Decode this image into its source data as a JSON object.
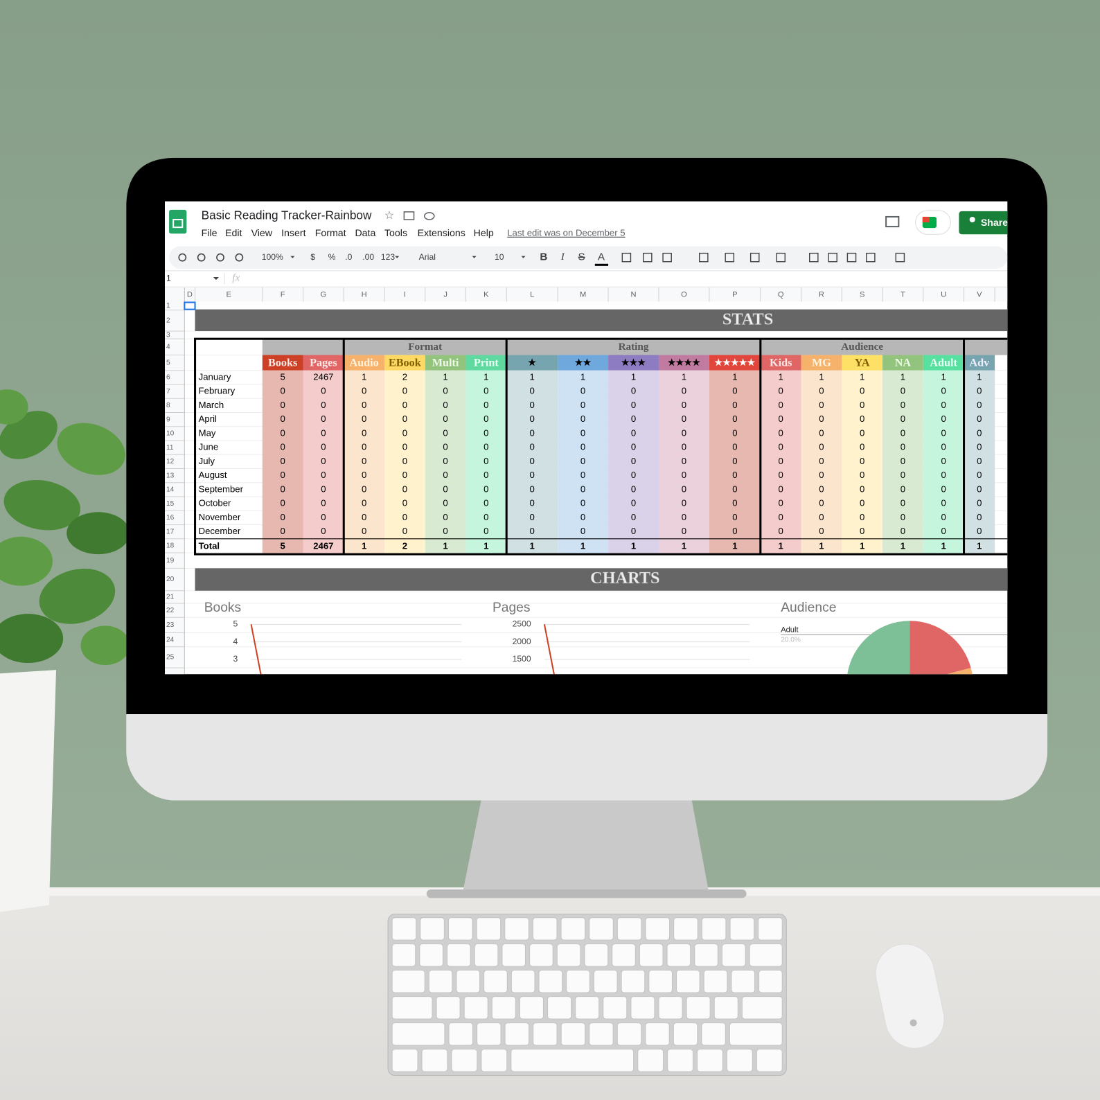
{
  "app": {
    "title": "Basic Reading Tracker-Rainbow",
    "menu": [
      "File",
      "Edit",
      "View",
      "Insert",
      "Format",
      "Data",
      "Tools",
      "Extensions",
      "Help"
    ],
    "last_edit": "Last edit was on December 5",
    "share": "Share"
  },
  "toolbar": {
    "zoom": "100%",
    "currency": "$",
    "percent": "%",
    "decimal_decrease": ".0",
    "decimal_increase": ".00",
    "number_format": "123",
    "font": "Arial",
    "font_size": "10",
    "bold": "B",
    "italic": "I",
    "strikethrough": "S",
    "text_color": "A"
  },
  "formula_bar": {
    "cell": "1",
    "fx": "fx"
  },
  "sheet": {
    "columns": [
      "D",
      "E",
      "F",
      "G",
      "H",
      "I",
      "J",
      "K",
      "L",
      "M",
      "N",
      "O",
      "P",
      "Q",
      "R",
      "S",
      "T",
      "U",
      "V"
    ],
    "rows": [
      1,
      2,
      3,
      4,
      5,
      6,
      7,
      8,
      9,
      10,
      11,
      12,
      13,
      14,
      15,
      16,
      17,
      18,
      19,
      20,
      21,
      22,
      23,
      24,
      25
    ]
  },
  "stats": {
    "banner": "STATS",
    "groups": [
      "Format",
      "Rating",
      "Audience"
    ],
    "headers": [
      "Books",
      "Pages",
      "Audio",
      "EBook",
      "Multi",
      "Print",
      "★",
      "★★",
      "★★★",
      "★★★★",
      "★★★★★",
      "Kids",
      "MG",
      "YA",
      "NA",
      "Adult",
      "Adv"
    ],
    "rows": [
      {
        "label": "January",
        "values": [
          5,
          2467,
          1,
          2,
          1,
          1,
          1,
          1,
          1,
          1,
          1,
          1,
          1,
          1,
          1,
          1,
          1
        ]
      },
      {
        "label": "February",
        "values": [
          0,
          0,
          0,
          0,
          0,
          0,
          0,
          0,
          0,
          0,
          0,
          0,
          0,
          0,
          0,
          0,
          0
        ]
      },
      {
        "label": "March",
        "values": [
          0,
          0,
          0,
          0,
          0,
          0,
          0,
          0,
          0,
          0,
          0,
          0,
          0,
          0,
          0,
          0,
          0
        ]
      },
      {
        "label": "April",
        "values": [
          0,
          0,
          0,
          0,
          0,
          0,
          0,
          0,
          0,
          0,
          0,
          0,
          0,
          0,
          0,
          0,
          0
        ]
      },
      {
        "label": "May",
        "values": [
          0,
          0,
          0,
          0,
          0,
          0,
          0,
          0,
          0,
          0,
          0,
          0,
          0,
          0,
          0,
          0,
          0
        ]
      },
      {
        "label": "June",
        "values": [
          0,
          0,
          0,
          0,
          0,
          0,
          0,
          0,
          0,
          0,
          0,
          0,
          0,
          0,
          0,
          0,
          0
        ]
      },
      {
        "label": "July",
        "values": [
          0,
          0,
          0,
          0,
          0,
          0,
          0,
          0,
          0,
          0,
          0,
          0,
          0,
          0,
          0,
          0,
          0
        ]
      },
      {
        "label": "August",
        "values": [
          0,
          0,
          0,
          0,
          0,
          0,
          0,
          0,
          0,
          0,
          0,
          0,
          0,
          0,
          0,
          0,
          0
        ]
      },
      {
        "label": "September",
        "values": [
          0,
          0,
          0,
          0,
          0,
          0,
          0,
          0,
          0,
          0,
          0,
          0,
          0,
          0,
          0,
          0,
          0
        ]
      },
      {
        "label": "October",
        "values": [
          0,
          0,
          0,
          0,
          0,
          0,
          0,
          0,
          0,
          0,
          0,
          0,
          0,
          0,
          0,
          0,
          0
        ]
      },
      {
        "label": "November",
        "values": [
          0,
          0,
          0,
          0,
          0,
          0,
          0,
          0,
          0,
          0,
          0,
          0,
          0,
          0,
          0,
          0,
          0
        ]
      },
      {
        "label": "December",
        "values": [
          0,
          0,
          0,
          0,
          0,
          0,
          0,
          0,
          0,
          0,
          0,
          0,
          0,
          0,
          0,
          0,
          0
        ]
      }
    ],
    "total": {
      "label": "Total",
      "values": [
        5,
        2467,
        1,
        2,
        1,
        1,
        1,
        1,
        1,
        1,
        1,
        1,
        1,
        1,
        1,
        1,
        1
      ]
    }
  },
  "charts": {
    "banner": "CHARTS",
    "books": {
      "title": "Books",
      "yticks": [
        5,
        4,
        3
      ]
    },
    "pages": {
      "title": "Pages",
      "yticks": [
        2500,
        2000,
        1500
      ]
    },
    "audience": {
      "title": "Audience",
      "legend": "Adult",
      "percent": "20.0%"
    }
  }
}
